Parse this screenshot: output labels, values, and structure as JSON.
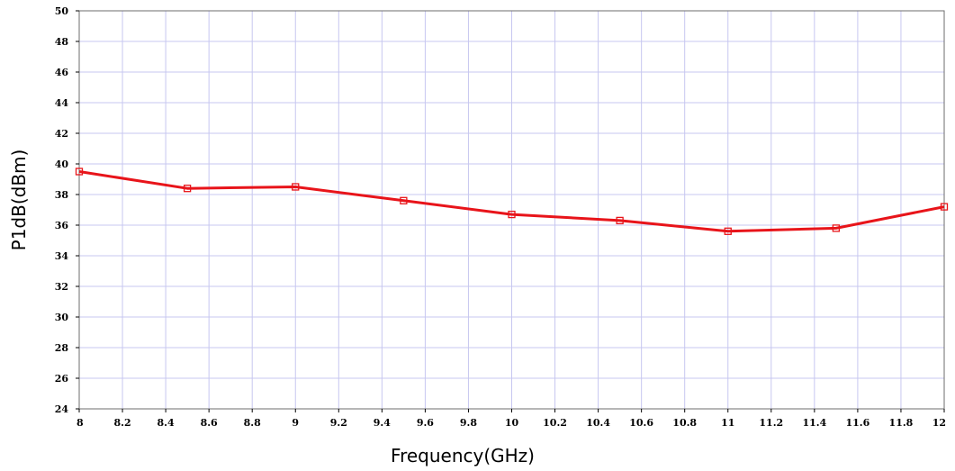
{
  "chart_data": {
    "type": "line",
    "title": "",
    "xlabel": "Frequency(GHz)",
    "ylabel": "P1dB(dBm)",
    "xlim": [
      8,
      12
    ],
    "ylim": [
      24,
      50
    ],
    "x_ticks": [
      "8",
      "8.2",
      "8.4",
      "8.6",
      "8.8",
      "9",
      "9.2",
      "9.4",
      "9.6",
      "9.8",
      "10",
      "10.2",
      "10.4",
      "10.6",
      "10.8",
      "11",
      "11.2",
      "11.4",
      "11.6",
      "11.8",
      "12"
    ],
    "y_ticks": [
      "24",
      "26",
      "28",
      "30",
      "32",
      "34",
      "36",
      "38",
      "40",
      "42",
      "44",
      "46",
      "48",
      "50"
    ],
    "grid": true,
    "legend": "none",
    "series": [
      {
        "color": "#e8141a",
        "marker": "square",
        "x": [
          8,
          8.5,
          9,
          9.5,
          10,
          10.5,
          11,
          11.5,
          12
        ],
        "y": [
          39.5,
          38.4,
          38.5,
          37.6,
          36.7,
          36.3,
          35.6,
          35.8,
          37.2
        ]
      }
    ]
  }
}
